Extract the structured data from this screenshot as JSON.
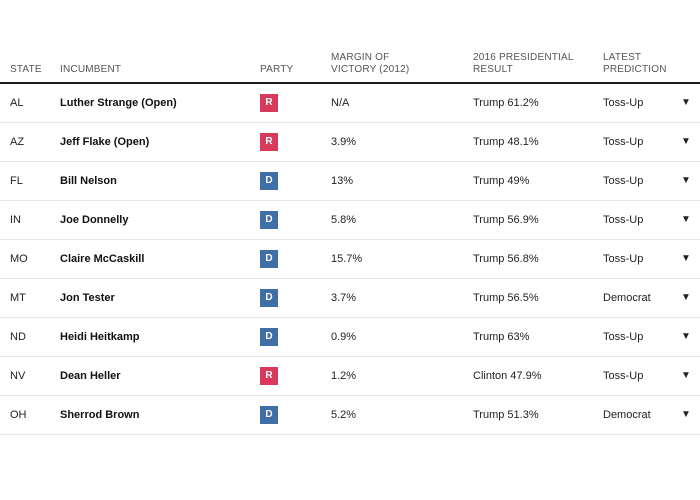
{
  "header": {
    "state": "STATE",
    "incumbent": "INCUMBENT",
    "party": "PARTY",
    "margin_l1": "MARGIN OF",
    "margin_l2": "VICTORY (2012)",
    "result_l1": "2016 PRESIDENTIAL",
    "result_l2": "RESULT",
    "prediction_l1": "LATEST",
    "prediction_l2": "PREDICTION"
  },
  "colors": {
    "republican": "#d9395a",
    "democrat": "#3f6fa6"
  },
  "dropdown_icon": "triangle-down-icon",
  "rows": [
    {
      "state": "AL",
      "incumbent": "Luther Strange (Open)",
      "party": "R",
      "margin": "N/A",
      "result": "Trump 61.2%",
      "prediction": "Toss-Up",
      "arrow": "▼"
    },
    {
      "state": "AZ",
      "incumbent": "Jeff Flake (Open)",
      "party": "R",
      "margin": "3.9%",
      "result": "Trump 48.1%",
      "prediction": "Toss-Up",
      "arrow": "▼"
    },
    {
      "state": "FL",
      "incumbent": "Bill Nelson",
      "party": "D",
      "margin": "13%",
      "result": "Trump 49%",
      "prediction": "Toss-Up",
      "arrow": "▼"
    },
    {
      "state": "IN",
      "incumbent": "Joe Donnelly",
      "party": "D",
      "margin": "5.8%",
      "result": "Trump 56.9%",
      "prediction": "Toss-Up",
      "arrow": "▼"
    },
    {
      "state": "MO",
      "incumbent": "Claire McCaskill",
      "party": "D",
      "margin": "15.7%",
      "result": "Trump 56.8%",
      "prediction": "Toss-Up",
      "arrow": "▼"
    },
    {
      "state": "MT",
      "incumbent": "Jon Tester",
      "party": "D",
      "margin": "3.7%",
      "result": "Trump 56.5%",
      "prediction": "Democrat",
      "arrow": "▼"
    },
    {
      "state": "ND",
      "incumbent": "Heidi Heitkamp",
      "party": "D",
      "margin": "0.9%",
      "result": "Trump 63%",
      "prediction": "Toss-Up",
      "arrow": "▼"
    },
    {
      "state": "NV",
      "incumbent": "Dean Heller",
      "party": "R",
      "margin": "1.2%",
      "result": "Clinton 47.9%",
      "prediction": "Toss-Up",
      "arrow": "▼"
    },
    {
      "state": "OH",
      "incumbent": "Sherrod Brown",
      "party": "D",
      "margin": "5.2%",
      "result": "Trump 51.3%",
      "prediction": "Democrat",
      "arrow": "▼"
    }
  ]
}
